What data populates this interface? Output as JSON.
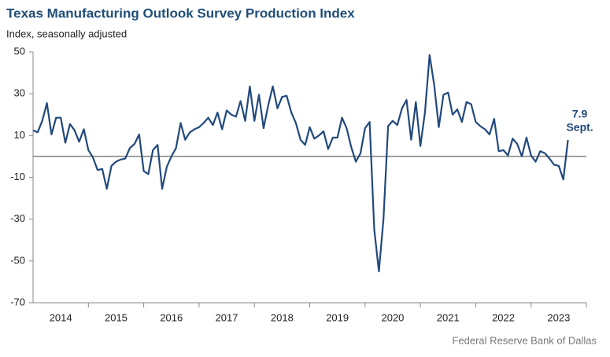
{
  "chart_data": {
    "type": "line",
    "title": "Texas Manufacturing Outlook Survey Production Index",
    "subtitle": "Index, seasonally adjusted",
    "source": "Federal Reserve Bank of Dallas",
    "annotation": "Sept.",
    "color": "#22497c",
    "x": [
      2014,
      2014.083,
      2014.167,
      2014.25,
      2014.333,
      2014.417,
      2014.5,
      2014.583,
      2014.667,
      2014.75,
      2014.833,
      2014.917,
      2015,
      2015.083,
      2015.167,
      2015.25,
      2015.333,
      2015.417,
      2015.5,
      2015.583,
      2015.667,
      2015.75,
      2015.833,
      2015.917,
      2016,
      2016.083,
      2016.167,
      2016.25,
      2016.333,
      2016.417,
      2016.5,
      2016.583,
      2016.667,
      2016.75,
      2016.833,
      2016.917,
      2017,
      2017.083,
      2017.167,
      2017.25,
      2017.333,
      2017.417,
      2017.5,
      2017.583,
      2017.667,
      2017.75,
      2017.833,
      2017.917,
      2018,
      2018.083,
      2018.167,
      2018.25,
      2018.333,
      2018.417,
      2018.5,
      2018.583,
      2018.667,
      2018.75,
      2018.833,
      2018.917,
      2019,
      2019.083,
      2019.167,
      2019.25,
      2019.333,
      2019.417,
      2019.5,
      2019.583,
      2019.667,
      2019.75,
      2019.833,
      2019.917,
      2020,
      2020.083,
      2020.167,
      2020.25,
      2020.333,
      2020.417,
      2020.5,
      2020.583,
      2020.667,
      2020.75,
      2020.833,
      2020.917,
      2021,
      2021.083,
      2021.167,
      2021.25,
      2021.333,
      2021.417,
      2021.5,
      2021.583,
      2021.667,
      2021.75,
      2021.833,
      2021.917,
      2022,
      2022.083,
      2022.167,
      2022.25,
      2022.333,
      2022.417,
      2022.5,
      2022.583,
      2022.667,
      2022.75,
      2022.833,
      2022.917,
      2023,
      2023.083,
      2023.167,
      2023.25,
      2023.333,
      2023.417,
      2023.5,
      2023.583,
      2023.667
    ],
    "values": [
      12.5,
      11.5,
      17,
      25.5,
      10.5,
      18.5,
      18.5,
      6.5,
      15.5,
      12.5,
      7,
      13,
      3,
      -0.5,
      -6.5,
      -6,
      -15.5,
      -4.5,
      -2.5,
      -1.5,
      -1,
      4,
      6,
      10.5,
      -7,
      -8.5,
      3,
      5.5,
      -15.5,
      -5,
      0,
      4,
      16,
      8,
      11.5,
      13,
      14,
      16,
      18.5,
      15,
      21,
      13,
      22,
      20,
      19,
      26.5,
      17,
      33.5,
      17,
      29.5,
      13.5,
      24.5,
      33.5,
      23,
      28.5,
      29,
      21,
      16,
      8,
      5.5,
      14,
      8.5,
      10,
      12,
      3.5,
      9,
      9,
      18.5,
      13.5,
      4.5,
      -2.5,
      1.5,
      13.5,
      16.5,
      -35,
      -55,
      -30,
      14.5,
      17,
      15,
      23,
      27,
      8,
      26,
      5,
      21,
      48.5,
      34,
      14,
      29.5,
      30.5,
      20,
      22.5,
      16.5,
      26,
      25,
      16.5,
      14.5,
      13,
      10.5,
      18,
      2.5,
      3,
      0.5,
      8.5,
      6,
      0,
      9,
      0.5,
      -2.5,
      2.5,
      1.5,
      -1,
      -4,
      -4.5,
      -11,
      7.9
    ],
    "xlim": [
      2014,
      2024
    ],
    "xticks": [
      {
        "value": 2014.5,
        "label": "2014"
      },
      {
        "value": 2015.5,
        "label": "2015"
      },
      {
        "value": 2016.5,
        "label": "2016"
      },
      {
        "value": 2017.5,
        "label": "2017"
      },
      {
        "value": 2018.5,
        "label": "2018"
      },
      {
        "value": 2019.5,
        "label": "2019"
      },
      {
        "value": 2020.5,
        "label": "2020"
      },
      {
        "value": 2021.5,
        "label": "2021"
      },
      {
        "value": 2022.5,
        "label": "2022"
      },
      {
        "value": 2023.5,
        "label": "2023"
      }
    ],
    "ylim": [
      -70,
      50
    ],
    "yticks": [
      50,
      30,
      10,
      -10,
      -30,
      -50,
      -70
    ],
    "grid": false
  }
}
